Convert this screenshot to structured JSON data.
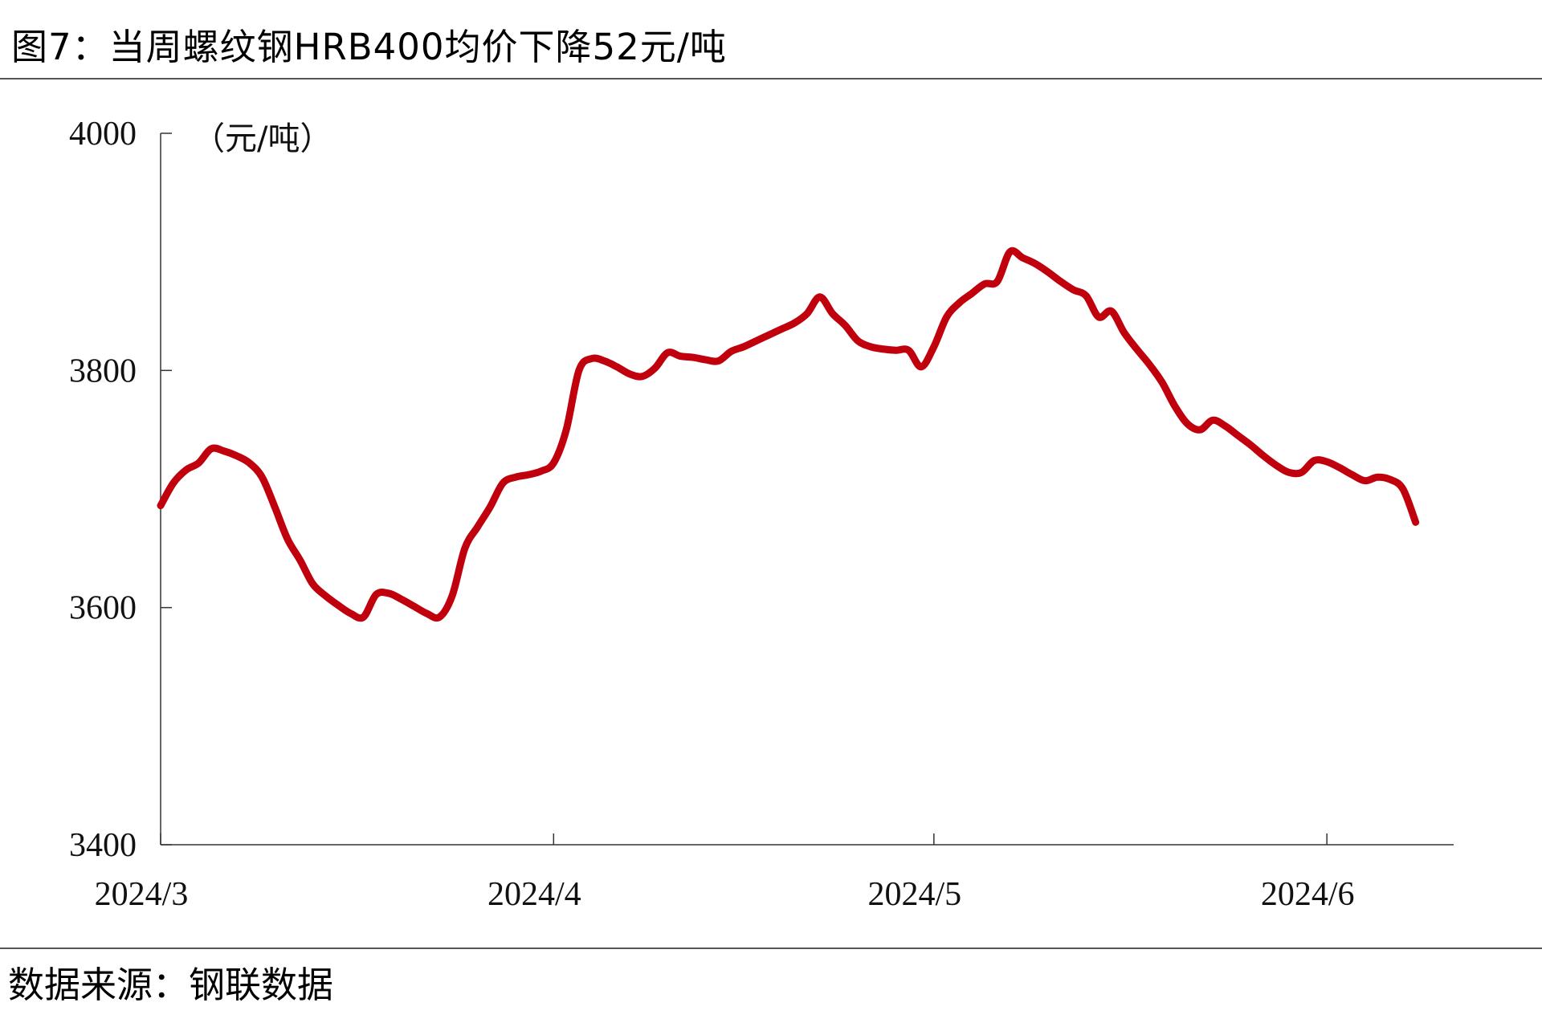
{
  "title": "图7：当周螺纹钢HRB400均价下降52元/吨",
  "source": "数据来源：钢联数据",
  "chart_data": {
    "type": "line",
    "unit_label": "（元/吨）",
    "color": "#c0000c",
    "ylim": [
      3400,
      4000
    ],
    "yticks": [
      4000,
      3800,
      3600,
      3400
    ],
    "x_range": [
      "2024-03-01",
      "2024-06-11"
    ],
    "xticks": [
      {
        "date": "2024-03-01",
        "label": "2024/3"
      },
      {
        "date": "2024-04-01",
        "label": "2024/4"
      },
      {
        "date": "2024-05-01",
        "label": "2024/5"
      },
      {
        "date": "2024-06-01",
        "label": "2024/6"
      }
    ],
    "grid": false,
    "series": [
      {
        "points": [
          [
            "2024-03-01",
            3686
          ],
          [
            "2024-03-02",
            3705
          ],
          [
            "2024-03-03",
            3716
          ],
          [
            "2024-03-04",
            3722
          ],
          [
            "2024-03-05",
            3734
          ],
          [
            "2024-03-06",
            3732
          ],
          [
            "2024-03-07",
            3728
          ],
          [
            "2024-03-08",
            3722
          ],
          [
            "2024-03-09",
            3710
          ],
          [
            "2024-03-10",
            3685
          ],
          [
            "2024-03-11",
            3658
          ],
          [
            "2024-03-12",
            3640
          ],
          [
            "2024-03-13",
            3620
          ],
          [
            "2024-03-14",
            3610
          ],
          [
            "2024-03-15",
            3602
          ],
          [
            "2024-03-16",
            3595
          ],
          [
            "2024-03-17",
            3592
          ],
          [
            "2024-03-18",
            3611
          ],
          [
            "2024-03-19",
            3612
          ],
          [
            "2024-03-20",
            3607
          ],
          [
            "2024-03-21",
            3601
          ],
          [
            "2024-03-22",
            3595
          ],
          [
            "2024-03-23",
            3592
          ],
          [
            "2024-03-24",
            3610
          ],
          [
            "2024-03-25",
            3650
          ],
          [
            "2024-03-26",
            3668
          ],
          [
            "2024-03-27",
            3685
          ],
          [
            "2024-03-28",
            3705
          ],
          [
            "2024-03-29",
            3710
          ],
          [
            "2024-03-30",
            3712
          ],
          [
            "2024-03-31",
            3715
          ],
          [
            "2024-04-01",
            3722
          ],
          [
            "2024-04-02",
            3750
          ],
          [
            "2024-04-03",
            3800
          ],
          [
            "2024-04-04",
            3810
          ],
          [
            "2024-04-05",
            3808
          ],
          [
            "2024-04-06",
            3803
          ],
          [
            "2024-04-07",
            3797
          ],
          [
            "2024-04-08",
            3795
          ],
          [
            "2024-04-09",
            3802
          ],
          [
            "2024-04-10",
            3815
          ],
          [
            "2024-04-11",
            3812
          ],
          [
            "2024-04-12",
            3811
          ],
          [
            "2024-04-13",
            3809
          ],
          [
            "2024-04-14",
            3808
          ],
          [
            "2024-04-15",
            3816
          ],
          [
            "2024-04-16",
            3820
          ],
          [
            "2024-04-17",
            3825
          ],
          [
            "2024-04-18",
            3830
          ],
          [
            "2024-04-19",
            3835
          ],
          [
            "2024-04-20",
            3840
          ],
          [
            "2024-04-21",
            3848
          ],
          [
            "2024-04-22",
            3862
          ],
          [
            "2024-04-23",
            3848
          ],
          [
            "2024-04-24",
            3838
          ],
          [
            "2024-04-25",
            3825
          ],
          [
            "2024-04-26",
            3820
          ],
          [
            "2024-04-27",
            3818
          ],
          [
            "2024-04-28",
            3817
          ],
          [
            "2024-04-29",
            3817
          ],
          [
            "2024-04-30",
            3803
          ],
          [
            "2024-05-01",
            3820
          ],
          [
            "2024-05-02",
            3845
          ],
          [
            "2024-05-03",
            3857
          ],
          [
            "2024-05-04",
            3865
          ],
          [
            "2024-05-05",
            3873
          ],
          [
            "2024-05-06",
            3875
          ],
          [
            "2024-05-07",
            3900
          ],
          [
            "2024-05-08",
            3895
          ],
          [
            "2024-05-09",
            3890
          ],
          [
            "2024-05-10",
            3883
          ],
          [
            "2024-05-11",
            3875
          ],
          [
            "2024-05-12",
            3868
          ],
          [
            "2024-05-13",
            3863
          ],
          [
            "2024-05-14",
            3845
          ],
          [
            "2024-05-15",
            3850
          ],
          [
            "2024-05-16",
            3832
          ],
          [
            "2024-05-17",
            3818
          ],
          [
            "2024-05-18",
            3805
          ],
          [
            "2024-05-19",
            3790
          ],
          [
            "2024-05-20",
            3770
          ],
          [
            "2024-05-21",
            3755
          ],
          [
            "2024-05-22",
            3750
          ],
          [
            "2024-05-23",
            3758
          ],
          [
            "2024-05-24",
            3753
          ],
          [
            "2024-05-25",
            3745
          ],
          [
            "2024-05-26",
            3737
          ],
          [
            "2024-05-27",
            3728
          ],
          [
            "2024-05-28",
            3720
          ],
          [
            "2024-05-29",
            3714
          ],
          [
            "2024-05-30",
            3714
          ],
          [
            "2024-05-31",
            3724
          ],
          [
            "2024-06-01",
            3723
          ],
          [
            "2024-06-02",
            3718
          ],
          [
            "2024-06-03",
            3712
          ],
          [
            "2024-06-04",
            3707
          ],
          [
            "2024-06-05",
            3710
          ],
          [
            "2024-06-06",
            3708
          ],
          [
            "2024-06-07",
            3700
          ],
          [
            "2024-06-08",
            3672
          ]
        ]
      }
    ]
  }
}
